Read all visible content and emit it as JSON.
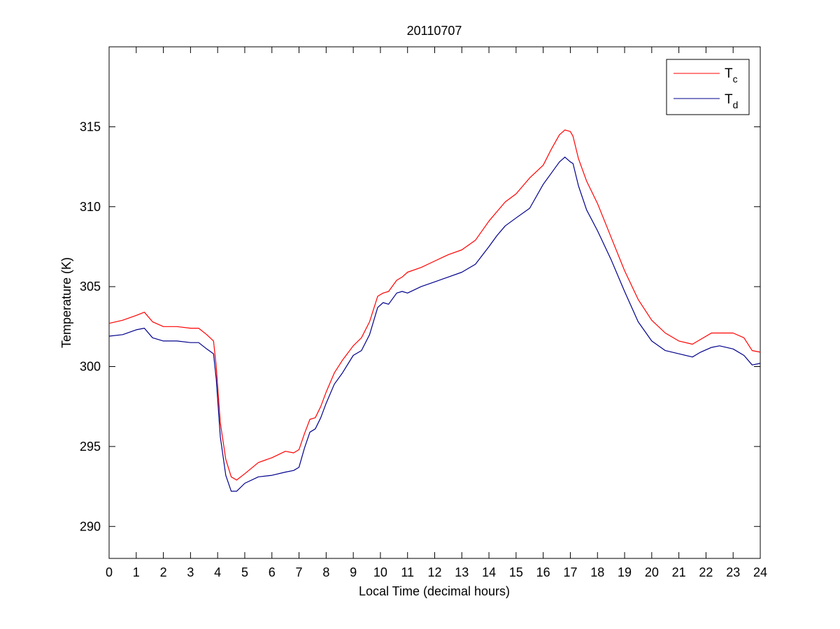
{
  "chart_data": {
    "type": "line",
    "title": "20110707",
    "xlabel": "Local Time (decimal hours)",
    "ylabel": "Temperature (K)",
    "xlim": [
      0,
      24
    ],
    "ylim": [
      288,
      320
    ],
    "xticks": [
      0,
      1,
      2,
      3,
      4,
      5,
      6,
      7,
      8,
      9,
      10,
      11,
      12,
      13,
      14,
      15,
      16,
      17,
      18,
      19,
      20,
      21,
      22,
      23,
      24
    ],
    "yticks": [
      290,
      295,
      300,
      305,
      310,
      315
    ],
    "grid": false,
    "legend_position": "top-right",
    "series": [
      {
        "name": "T",
        "subscript": "c",
        "color": "#ff0000",
        "x": [
          0,
          0.5,
          1,
          1.3,
          1.6,
          2,
          2.5,
          3,
          3.3,
          3.6,
          3.85,
          3.95,
          4.1,
          4.3,
          4.5,
          4.7,
          5,
          5.5,
          6,
          6.5,
          6.8,
          7,
          7.2,
          7.4,
          7.6,
          7.8,
          8,
          8.3,
          8.6,
          9,
          9.3,
          9.6,
          9.9,
          10.1,
          10.3,
          10.6,
          10.8,
          11,
          11.5,
          12,
          12.5,
          13,
          13.5,
          14,
          14.3,
          14.6,
          15,
          15.5,
          16,
          16.3,
          16.6,
          16.8,
          17,
          17.1,
          17.3,
          17.6,
          18,
          18.5,
          19,
          19.5,
          20,
          20.5,
          21,
          21.5,
          21.8,
          22.2,
          22.5,
          23,
          23.4,
          23.7,
          24
        ],
        "values": [
          302.7,
          302.9,
          303.2,
          303.4,
          302.8,
          302.5,
          302.5,
          302.4,
          302.4,
          302.0,
          301.6,
          300.0,
          296.5,
          294.2,
          293.1,
          292.9,
          293.3,
          294.0,
          294.3,
          294.7,
          294.6,
          294.8,
          295.8,
          296.7,
          296.8,
          297.5,
          298.4,
          299.6,
          300.4,
          301.3,
          301.8,
          302.8,
          304.4,
          304.6,
          304.7,
          305.4,
          305.6,
          305.9,
          306.2,
          306.6,
          307.0,
          307.3,
          307.9,
          309.1,
          309.7,
          310.3,
          310.8,
          311.8,
          312.6,
          313.6,
          314.5,
          314.8,
          314.7,
          314.4,
          313.0,
          311.6,
          310.2,
          308.1,
          306.0,
          304.2,
          302.9,
          302.1,
          301.6,
          301.4,
          301.7,
          302.1,
          302.1,
          302.1,
          301.8,
          301.0,
          300.9
        ]
      },
      {
        "name": "T",
        "subscript": "d",
        "color": "#00008b",
        "x": [
          0,
          0.5,
          1,
          1.3,
          1.6,
          2,
          2.5,
          3,
          3.3,
          3.6,
          3.85,
          3.95,
          4.1,
          4.3,
          4.5,
          4.7,
          5,
          5.5,
          6,
          6.5,
          6.8,
          7,
          7.2,
          7.4,
          7.6,
          7.8,
          8,
          8.3,
          8.6,
          9,
          9.3,
          9.6,
          9.9,
          10.1,
          10.3,
          10.6,
          10.8,
          11,
          11.5,
          12,
          12.5,
          13,
          13.5,
          14,
          14.3,
          14.6,
          15,
          15.5,
          16,
          16.3,
          16.6,
          16.8,
          17,
          17.1,
          17.3,
          17.6,
          18,
          18.5,
          19,
          19.5,
          20,
          20.5,
          21,
          21.5,
          21.8,
          22.2,
          22.5,
          23,
          23.4,
          23.7,
          24
        ],
        "values": [
          301.9,
          302.0,
          302.3,
          302.4,
          301.8,
          301.6,
          301.6,
          301.5,
          301.5,
          301.1,
          300.8,
          299.2,
          295.6,
          293.2,
          292.2,
          292.2,
          292.7,
          293.1,
          293.2,
          293.4,
          293.5,
          293.7,
          294.9,
          295.9,
          296.1,
          296.8,
          297.7,
          298.9,
          299.6,
          300.7,
          301.0,
          302.0,
          303.7,
          304.0,
          303.9,
          304.6,
          304.7,
          304.6,
          305.0,
          305.3,
          305.6,
          305.9,
          306.4,
          307.5,
          308.2,
          308.8,
          309.3,
          309.9,
          311.4,
          312.1,
          312.8,
          313.1,
          312.8,
          312.7,
          311.3,
          309.8,
          308.5,
          306.7,
          304.7,
          302.8,
          301.6,
          301.0,
          300.8,
          300.6,
          300.9,
          301.2,
          301.3,
          301.1,
          300.7,
          300.1,
          300.2
        ]
      }
    ]
  }
}
